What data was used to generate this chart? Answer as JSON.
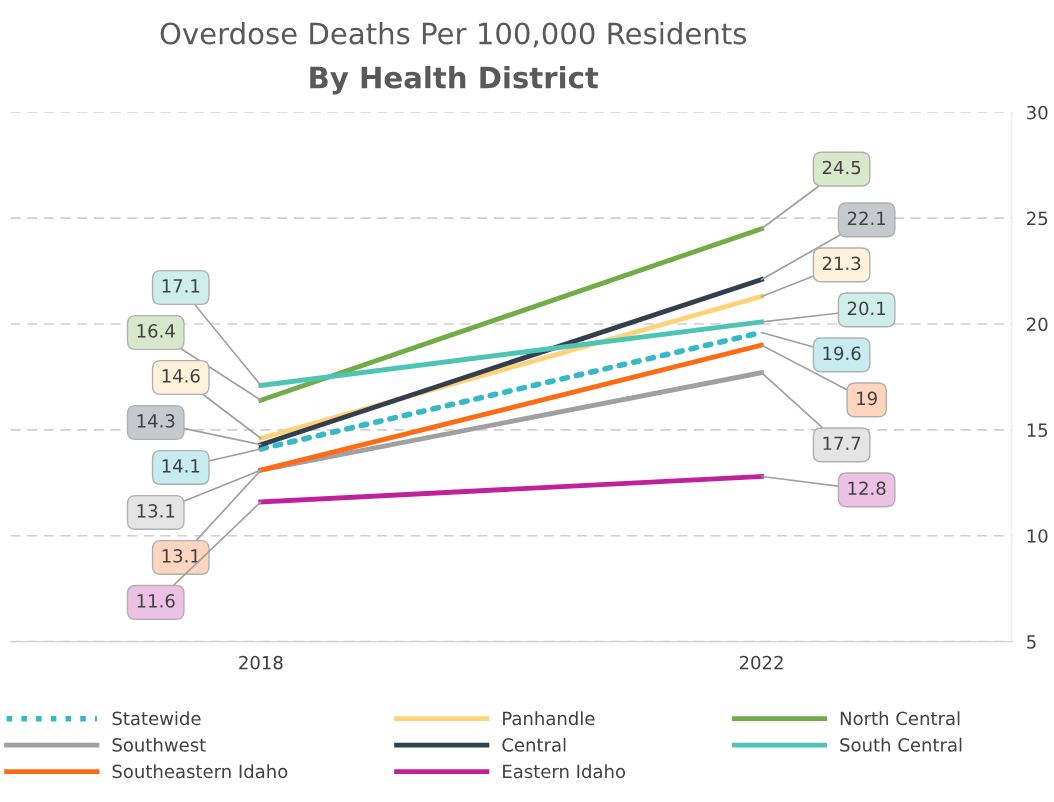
{
  "chart_data": {
    "type": "line",
    "title": "Overdose Deaths Per 100,000 Residents",
    "subtitle": "By Health District",
    "categories": [
      "2018",
      "2022"
    ],
    "series": [
      {
        "name": "Statewide",
        "color": "#35b8c8",
        "values": [
          14.1,
          19.6
        ],
        "line_style": "dotted"
      },
      {
        "name": "Panhandle",
        "color": "#ffd27a",
        "values": [
          14.6,
          21.3
        ]
      },
      {
        "name": "North Central",
        "color": "#70ad47",
        "values": [
          16.4,
          24.5
        ]
      },
      {
        "name": "Southwest",
        "color": "#a0a0a0",
        "values": [
          13.1,
          17.7
        ]
      },
      {
        "name": "Central",
        "color": "#323f4f",
        "values": [
          14.3,
          22.1
        ]
      },
      {
        "name": "South Central",
        "color": "#4dc4b4",
        "values": [
          17.1,
          20.1
        ]
      },
      {
        "name": "Southeastern Idaho",
        "color": "#ff6a13",
        "values": [
          13.1,
          19
        ]
      },
      {
        "name": "Eastern Idaho",
        "color": "#c0209c",
        "values": [
          11.6,
          12.8
        ]
      }
    ],
    "annotations": [
      {
        "text": "14.1",
        "x": "2018",
        "y": 14.1
      },
      {
        "text": "19.6",
        "x": "2022",
        "y": 19.6
      },
      {
        "text": "14.6",
        "x": "2018",
        "y": 14.6
      },
      {
        "text": "21.3",
        "x": "2022",
        "y": 21.3
      },
      {
        "text": "16.4",
        "x": "2018",
        "y": 16.4
      },
      {
        "text": "24.5",
        "x": "2022",
        "y": 24.5
      },
      {
        "text": "13.1",
        "x": "2018",
        "y": 13.1
      },
      {
        "text": "17.7",
        "x": "2022",
        "y": 17.7
      },
      {
        "text": "14.3",
        "x": "2018",
        "y": 14.3
      },
      {
        "text": "22.1",
        "x": "2022",
        "y": 22.1
      },
      {
        "text": "17.1",
        "x": "2018",
        "y": 17.1
      },
      {
        "text": "20.1",
        "x": "2022",
        "y": 20.1
      },
      {
        "text": "13.1",
        "x": "2018",
        "y": 13.1
      },
      {
        "text": "19",
        "x": "2022",
        "y": 19
      },
      {
        "text": "11.6",
        "x": "2018",
        "y": 11.6
      },
      {
        "text": "12.8",
        "x": "2022",
        "y": 12.8
      }
    ],
    "ylim": [
      5,
      30
    ],
    "yticks": [
      5,
      10,
      15,
      20,
      25,
      30
    ],
    "grid": "y",
    "legend": "bottom",
    "marker": "none",
    "line_style": "solid"
  }
}
